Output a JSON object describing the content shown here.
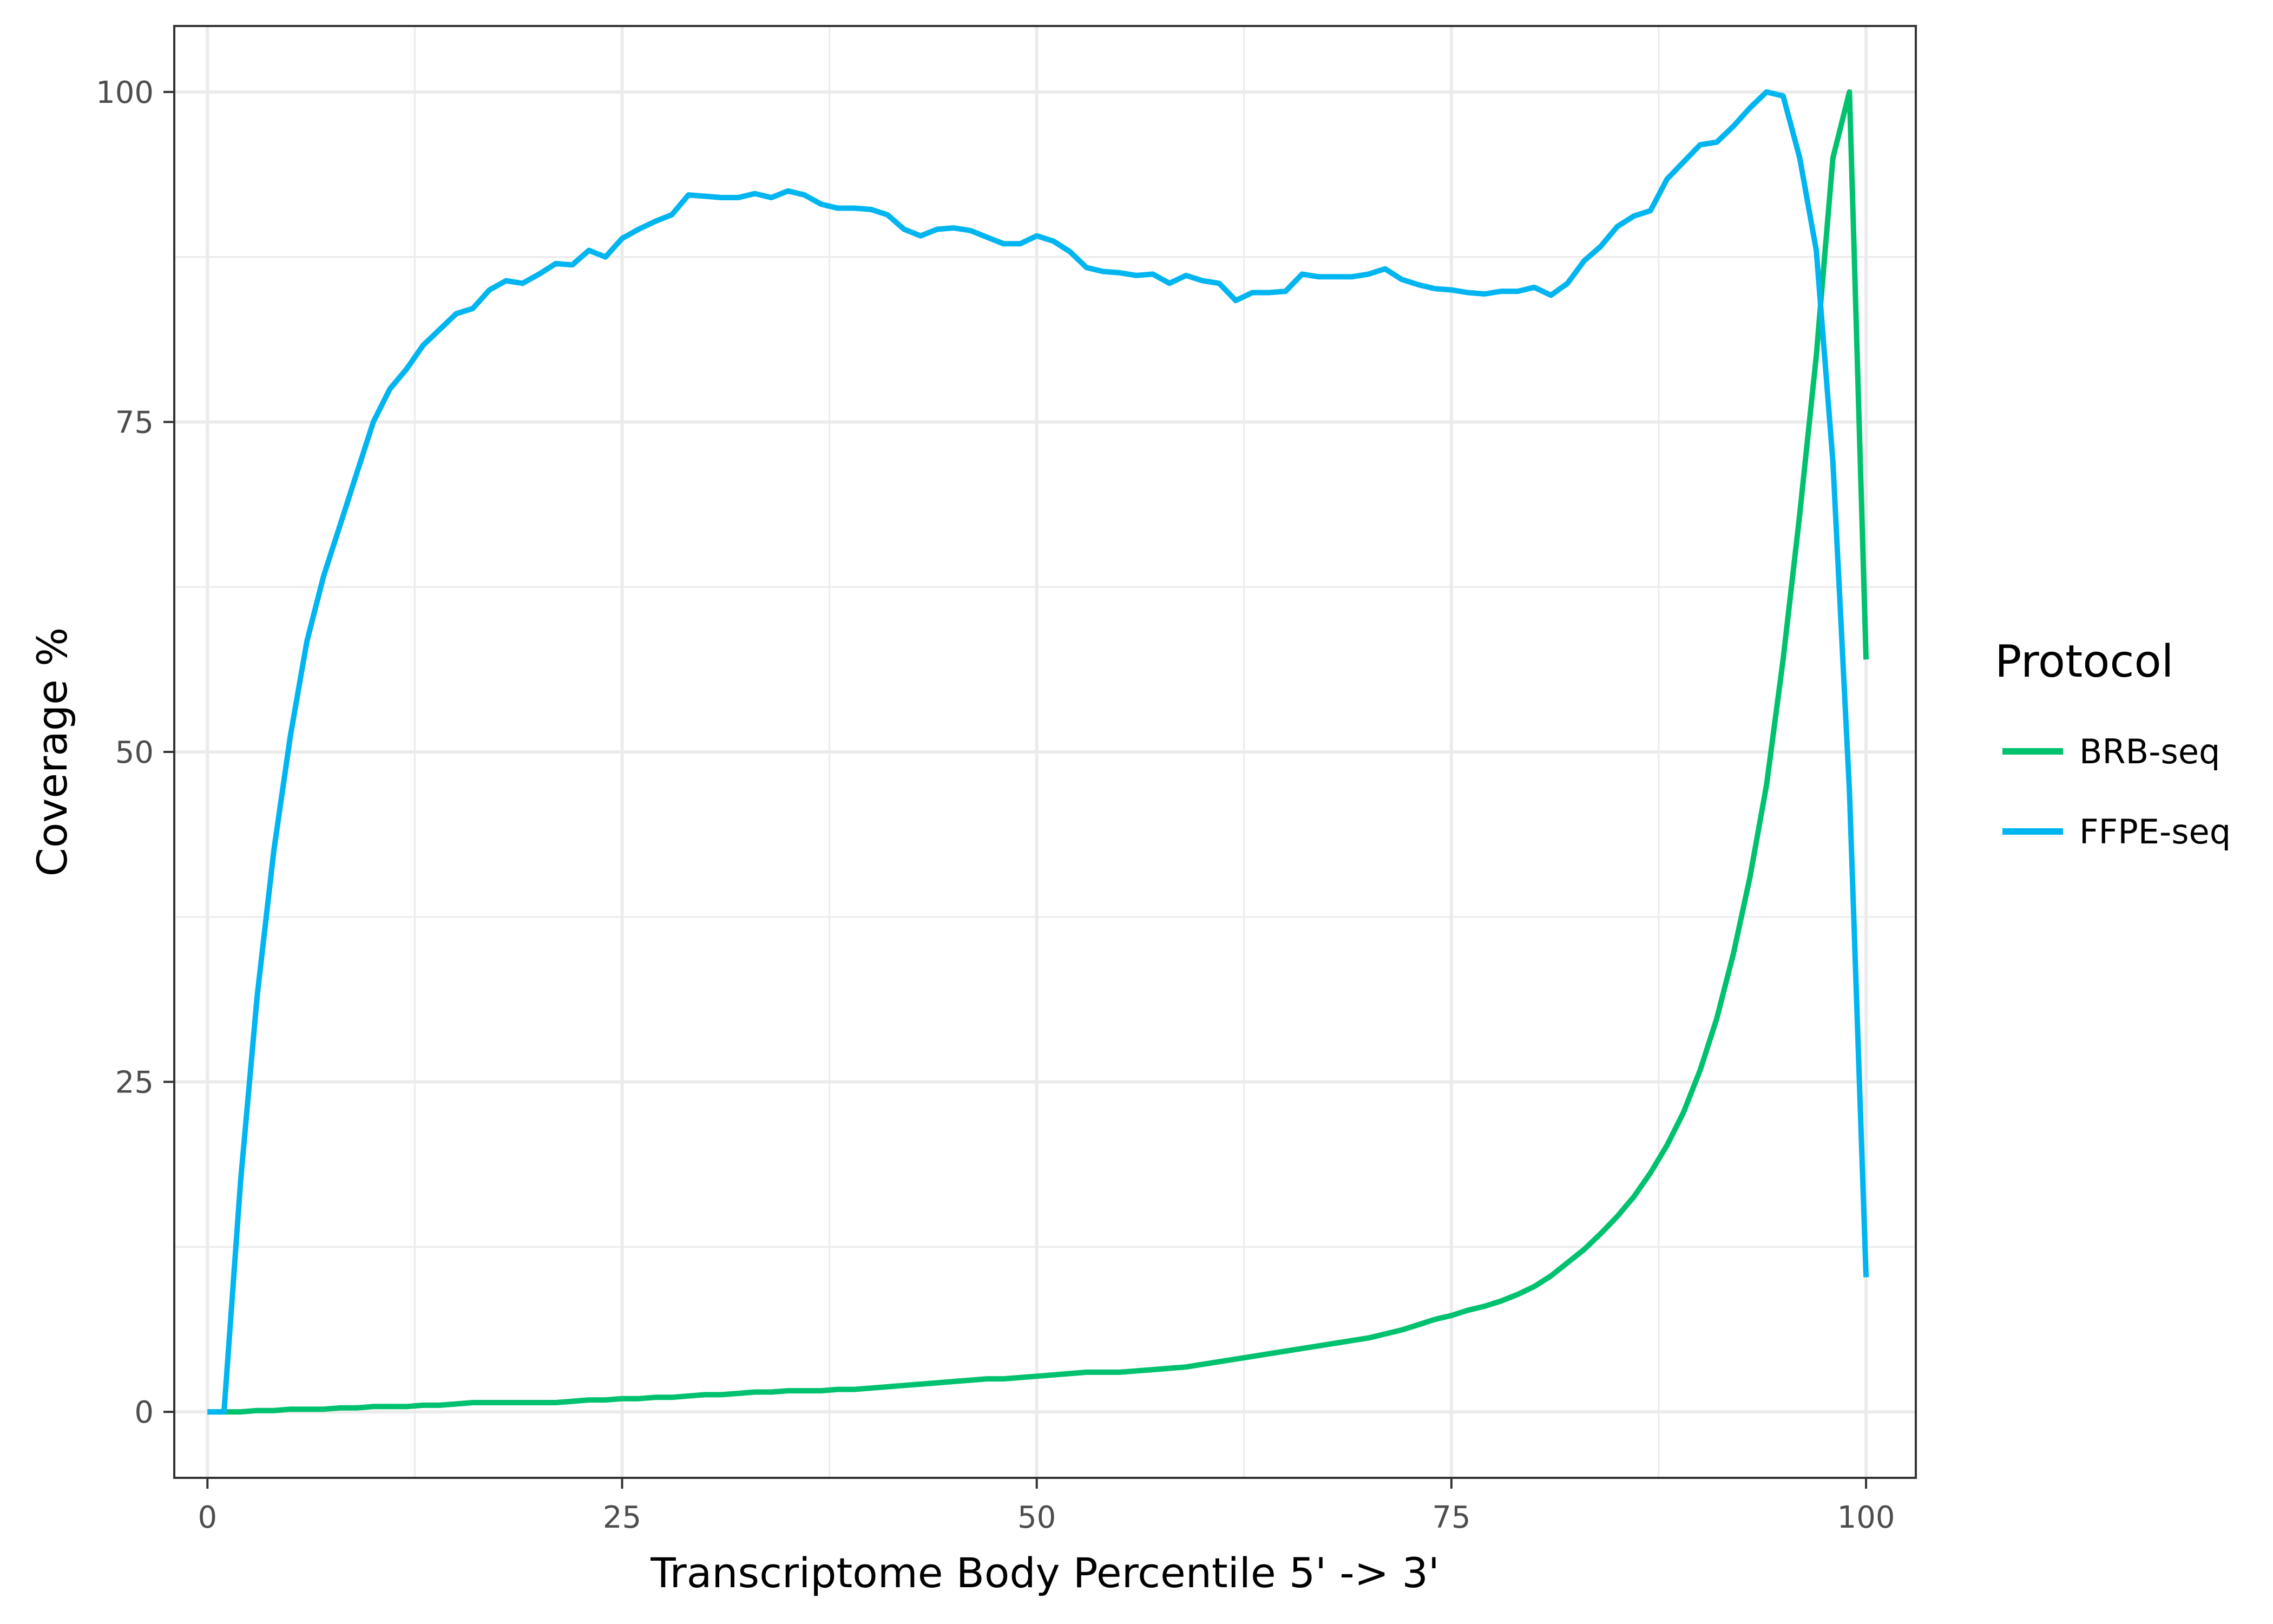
{
  "chart_data": {
    "type": "line",
    "title": "",
    "xlabel": "Transcriptome Body Percentile 5' -> 3'",
    "ylabel": "Coverage %",
    "xlim": [
      -2,
      103
    ],
    "ylim": [
      -5,
      105
    ],
    "xticks": [
      {
        "value": 0,
        "label": "0"
      },
      {
        "value": 25,
        "label": "25"
      },
      {
        "value": 50,
        "label": "50"
      },
      {
        "value": 75,
        "label": "75"
      },
      {
        "value": 100,
        "label": "100"
      }
    ],
    "yticks": [
      {
        "value": 0,
        "label": "0"
      },
      {
        "value": 25,
        "label": "25"
      },
      {
        "value": 50,
        "label": "50"
      },
      {
        "value": 75,
        "label": "75"
      },
      {
        "value": 100,
        "label": "100"
      }
    ],
    "grid": true,
    "legend": {
      "title": "Protocol",
      "position": "right"
    },
    "series": [
      {
        "name": "BRB-seq",
        "color": "#00C16E",
        "x": [
          0,
          1,
          2,
          3,
          4,
          5,
          6,
          7,
          8,
          9,
          10,
          11,
          12,
          13,
          14,
          15,
          16,
          17,
          18,
          19,
          20,
          21,
          22,
          23,
          24,
          25,
          26,
          27,
          28,
          29,
          30,
          31,
          32,
          33,
          34,
          35,
          36,
          37,
          38,
          39,
          40,
          41,
          42,
          43,
          44,
          45,
          46,
          47,
          48,
          49,
          50,
          51,
          52,
          53,
          54,
          55,
          56,
          57,
          58,
          59,
          60,
          61,
          62,
          63,
          64,
          65,
          66,
          67,
          68,
          69,
          70,
          71,
          72,
          73,
          74,
          75,
          76,
          77,
          78,
          79,
          80,
          81,
          82,
          83,
          84,
          85,
          86,
          87,
          88,
          89,
          90,
          91,
          92,
          93,
          94,
          95,
          96,
          97,
          98,
          99,
          100
        ],
        "y": [
          0,
          0,
          0,
          0.1,
          0.1,
          0.2,
          0.2,
          0.2,
          0.3,
          0.3,
          0.4,
          0.4,
          0.4,
          0.5,
          0.5,
          0.6,
          0.7,
          0.7,
          0.7,
          0.7,
          0.7,
          0.7,
          0.8,
          0.9,
          0.9,
          1.0,
          1.0,
          1.1,
          1.1,
          1.2,
          1.3,
          1.3,
          1.4,
          1.5,
          1.5,
          1.6,
          1.6,
          1.6,
          1.7,
          1.7,
          1.8,
          1.9,
          2.0,
          2.1,
          2.2,
          2.3,
          2.4,
          2.5,
          2.5,
          2.6,
          2.7,
          2.8,
          2.9,
          3.0,
          3.0,
          3.0,
          3.1,
          3.2,
          3.3,
          3.4,
          3.6,
          3.8,
          4.0,
          4.2,
          4.4,
          4.6,
          4.8,
          5.0,
          5.2,
          5.4,
          5.6,
          5.9,
          6.2,
          6.6,
          7.0,
          7.3,
          7.7,
          8.0,
          8.4,
          8.9,
          9.5,
          10.3,
          11.3,
          12.3,
          13.5,
          14.8,
          16.3,
          18.1,
          20.2,
          22.7,
          25.9,
          29.8,
          34.7,
          40.5,
          47.5,
          57.0,
          68.0,
          80.0,
          95.0,
          100,
          57.0
        ]
      },
      {
        "name": "FFPE-seq",
        "color": "#00B5F0",
        "x": [
          0,
          1,
          2,
          3,
          4,
          5,
          6,
          7,
          8,
          9,
          10,
          11,
          12,
          13,
          14,
          15,
          16,
          17,
          18,
          19,
          20,
          21,
          22,
          23,
          24,
          25,
          26,
          27,
          28,
          29,
          30,
          31,
          32,
          33,
          34,
          35,
          36,
          37,
          38,
          39,
          40,
          41,
          42,
          43,
          44,
          45,
          46,
          47,
          48,
          49,
          50,
          51,
          52,
          53,
          54,
          55,
          56,
          57,
          58,
          59,
          60,
          61,
          62,
          63,
          64,
          65,
          66,
          67,
          68,
          69,
          70,
          71,
          72,
          73,
          74,
          75,
          76,
          77,
          78,
          79,
          80,
          81,
          82,
          83,
          84,
          85,
          86,
          87,
          88,
          89,
          90,
          91,
          92,
          93,
          94,
          95,
          96,
          97,
          98,
          99,
          100
        ],
        "y": [
          0,
          0,
          17.5,
          31.5,
          42.5,
          51.2,
          58.4,
          63.3,
          67.2,
          71.1,
          75.0,
          77.5,
          79.0,
          80.8,
          82.0,
          83.2,
          83.6,
          85.0,
          85.7,
          85.5,
          86.2,
          87.0,
          86.9,
          88.0,
          87.5,
          88.9,
          89.6,
          90.2,
          90.7,
          92.2,
          92.1,
          92.0,
          92.0,
          92.3,
          92.0,
          92.5,
          92.2,
          91.5,
          91.2,
          91.2,
          91.1,
          90.7,
          89.6,
          89.1,
          89.6,
          89.7,
          89.5,
          89.0,
          88.5,
          88.5,
          89.1,
          88.7,
          87.9,
          86.7,
          86.4,
          86.3,
          86.1,
          86.2,
          85.5,
          86.1,
          85.7,
          85.5,
          84.2,
          84.8,
          84.8,
          84.9,
          86.2,
          86.0,
          86.0,
          86.0,
          86.2,
          86.6,
          85.8,
          85.4,
          85.1,
          85.0,
          84.8,
          84.7,
          84.9,
          84.9,
          85.2,
          84.6,
          85.5,
          87.2,
          88.3,
          89.8,
          90.6,
          91.0,
          93.4,
          94.7,
          96.0,
          96.2,
          97.4,
          98.8,
          100,
          99.7,
          95.0,
          88.0,
          72.0,
          47.0,
          10.2
        ]
      }
    ]
  }
}
